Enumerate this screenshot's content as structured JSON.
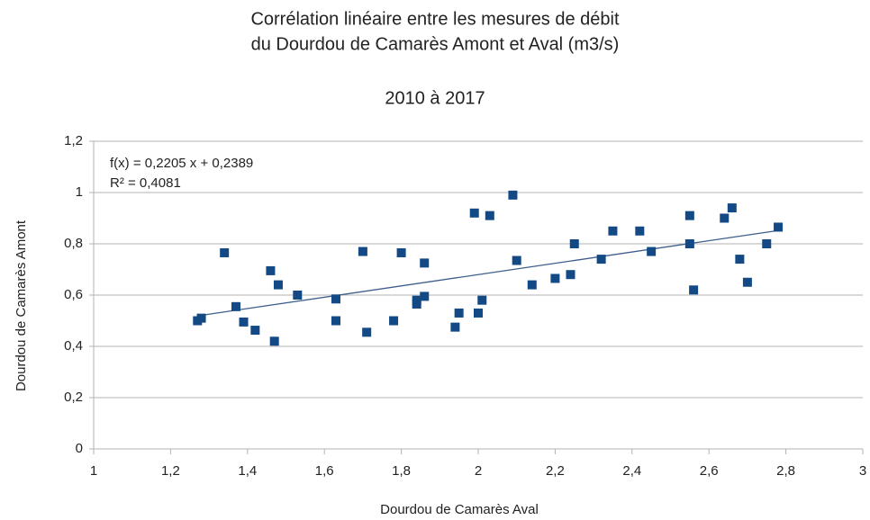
{
  "chart_data": {
    "type": "scatter",
    "title": [
      "Corrélation linéaire entre les mesures de débit",
      "du Dourdou de Camarès Amont et Aval (m3/s)"
    ],
    "subtitle": "2010 à 2017",
    "x_label": "Dourdou de Camarès Aval",
    "y_label": "Dourdou de Camarès Amont",
    "annotations": [
      "f(x) = 0,2205 x + 0,2389",
      "R² = 0,4081"
    ],
    "trendline": {
      "slope": 0.2205,
      "intercept": 0.2389,
      "color": "#3d5e8c"
    },
    "series": [
      {
        "name": "Amont",
        "color": "#134a85",
        "x": [
          1.27,
          1.28,
          1.34,
          1.37,
          1.39,
          1.42,
          1.46,
          1.47,
          1.48,
          1.53,
          1.63,
          1.63,
          1.7,
          1.71,
          1.78,
          1.8,
          1.84,
          1.84,
          1.86,
          1.86,
          1.94,
          1.95,
          1.99,
          2.0,
          2.01,
          2.03,
          2.09,
          2.1,
          2.14,
          2.2,
          2.24,
          2.25,
          2.32,
          2.35,
          2.42,
          2.45,
          2.55,
          2.55,
          2.56,
          2.64,
          2.66,
          2.68,
          2.7,
          2.75,
          2.78
        ],
        "values": [
          0.5,
          0.51,
          0.765,
          0.555,
          0.495,
          0.463,
          0.695,
          0.42,
          0.64,
          0.6,
          0.585,
          0.5,
          0.77,
          0.455,
          0.5,
          0.765,
          0.565,
          0.58,
          0.725,
          0.595,
          0.475,
          0.53,
          0.92,
          0.53,
          0.58,
          0.91,
          0.99,
          0.735,
          0.64,
          0.665,
          0.68,
          0.8,
          0.74,
          0.85,
          0.85,
          0.77,
          0.91,
          0.8,
          0.62,
          0.9,
          0.94,
          0.74,
          0.65,
          0.8,
          0.865
        ]
      }
    ],
    "xlim": [
      1,
      3
    ],
    "xticks": [
      1,
      {
        "value": 1.2,
        "label": "1,2"
      },
      {
        "value": 1.4,
        "label": "1,4"
      },
      {
        "value": 1.6,
        "label": "1,6"
      },
      {
        "value": 1.8,
        "label": "1,8"
      },
      2,
      {
        "value": 2.2,
        "label": "2,2"
      },
      {
        "value": 2.4,
        "label": "2,4"
      },
      {
        "value": 2.6,
        "label": "2,6"
      },
      {
        "value": 2.8,
        "label": "2,8"
      },
      3
    ],
    "ylim": [
      0,
      1.2
    ],
    "yticks": [
      0,
      {
        "value": 0.2,
        "label": "0,2"
      },
      {
        "value": 0.4,
        "label": "0,4"
      },
      {
        "value": 0.6,
        "label": "0,6"
      },
      {
        "value": 0.8,
        "label": "0,8"
      },
      1,
      {
        "value": 1.2,
        "label": "1,2"
      }
    ],
    "grid": true
  }
}
